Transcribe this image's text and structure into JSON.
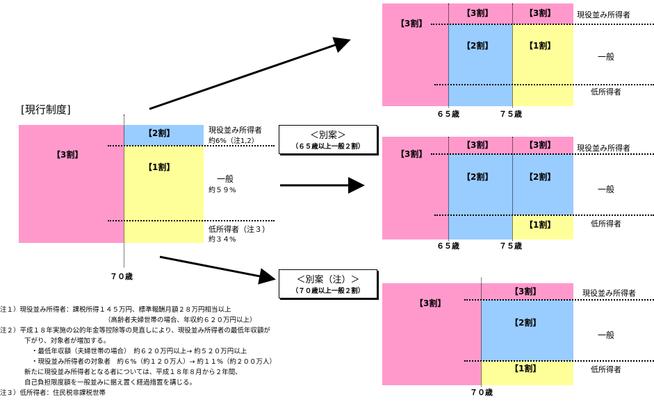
{
  "current": {
    "title": "[現行制度]",
    "rate_3": "【3割】",
    "rate_2": "【2割】",
    "rate_1": "【1割】",
    "high_income": "現役並み所得者",
    "high_pct": "約6%（注1,2）",
    "general": "一般",
    "general_pct": "約５９%",
    "low_income": "低所得者（注３）",
    "low_pct": "約３４%",
    "age": "７０歳"
  },
  "alt1": {
    "title": "＜別案＞",
    "subtitle": "（６５歳以上一般２割）"
  },
  "alt2": {
    "title": "＜別案（注）＞",
    "subtitle": "（７０歳以上一般２割）"
  },
  "top": {
    "r3a": "【3割】",
    "r3b": "【3割】",
    "r3c": "【3割】",
    "r2": "【2割】",
    "r1": "【1割】",
    "high": "現役並み所得者",
    "general": "一般",
    "low": "低所得者",
    "age65": "６５歳",
    "age75": "７５歳"
  },
  "mid": {
    "r3a": "【3割】",
    "r3b": "【3割】",
    "r3c": "【3割】",
    "r2a": "【2割】",
    "r2b": "【2割】",
    "r1": "【1割】",
    "high": "現役並み所得者",
    "general": "一般",
    "low": "低所得者",
    "age65": "６５歳",
    "age75": "７５歳"
  },
  "bot": {
    "r3a": "【3割】",
    "r3b": "【3割】",
    "r2": "【2割】",
    "r1": "【1割】",
    "high": "現役並み所得者",
    "general": "一般",
    "low": "低所得者",
    "age70": "７０歳"
  },
  "notes": [
    "注１）現役並み所得者：課税所得１４５万円、標準報酬月額２８万円相当以上",
    "（高齢者夫婦世帯の場合、年収約６２０万円以上）",
    "注２）平成１８年実施の公的年金等控除等の見直しにより、現役並み所得者の最低年収額が",
    "下がり、対象者が増加する。",
    "・最低年収額（夫婦世帯の場合）　約６２０万円以上→ 約５２０万円以上",
    "・現役並み所得者の対象者　約６%（約１２０万人）→ 約１１%（約２００万人）",
    "新たに現役並み所得者となる者については、平成１８年８月から２年間、",
    "自己負担限度額を一般並みに据え置く経過措置を講じる。",
    "注３）低所得者：住民税非課税世帯"
  ],
  "colors": {
    "rate3": "#ff99cc",
    "rate2": "#99ccff",
    "rate1": "#ffff99"
  }
}
